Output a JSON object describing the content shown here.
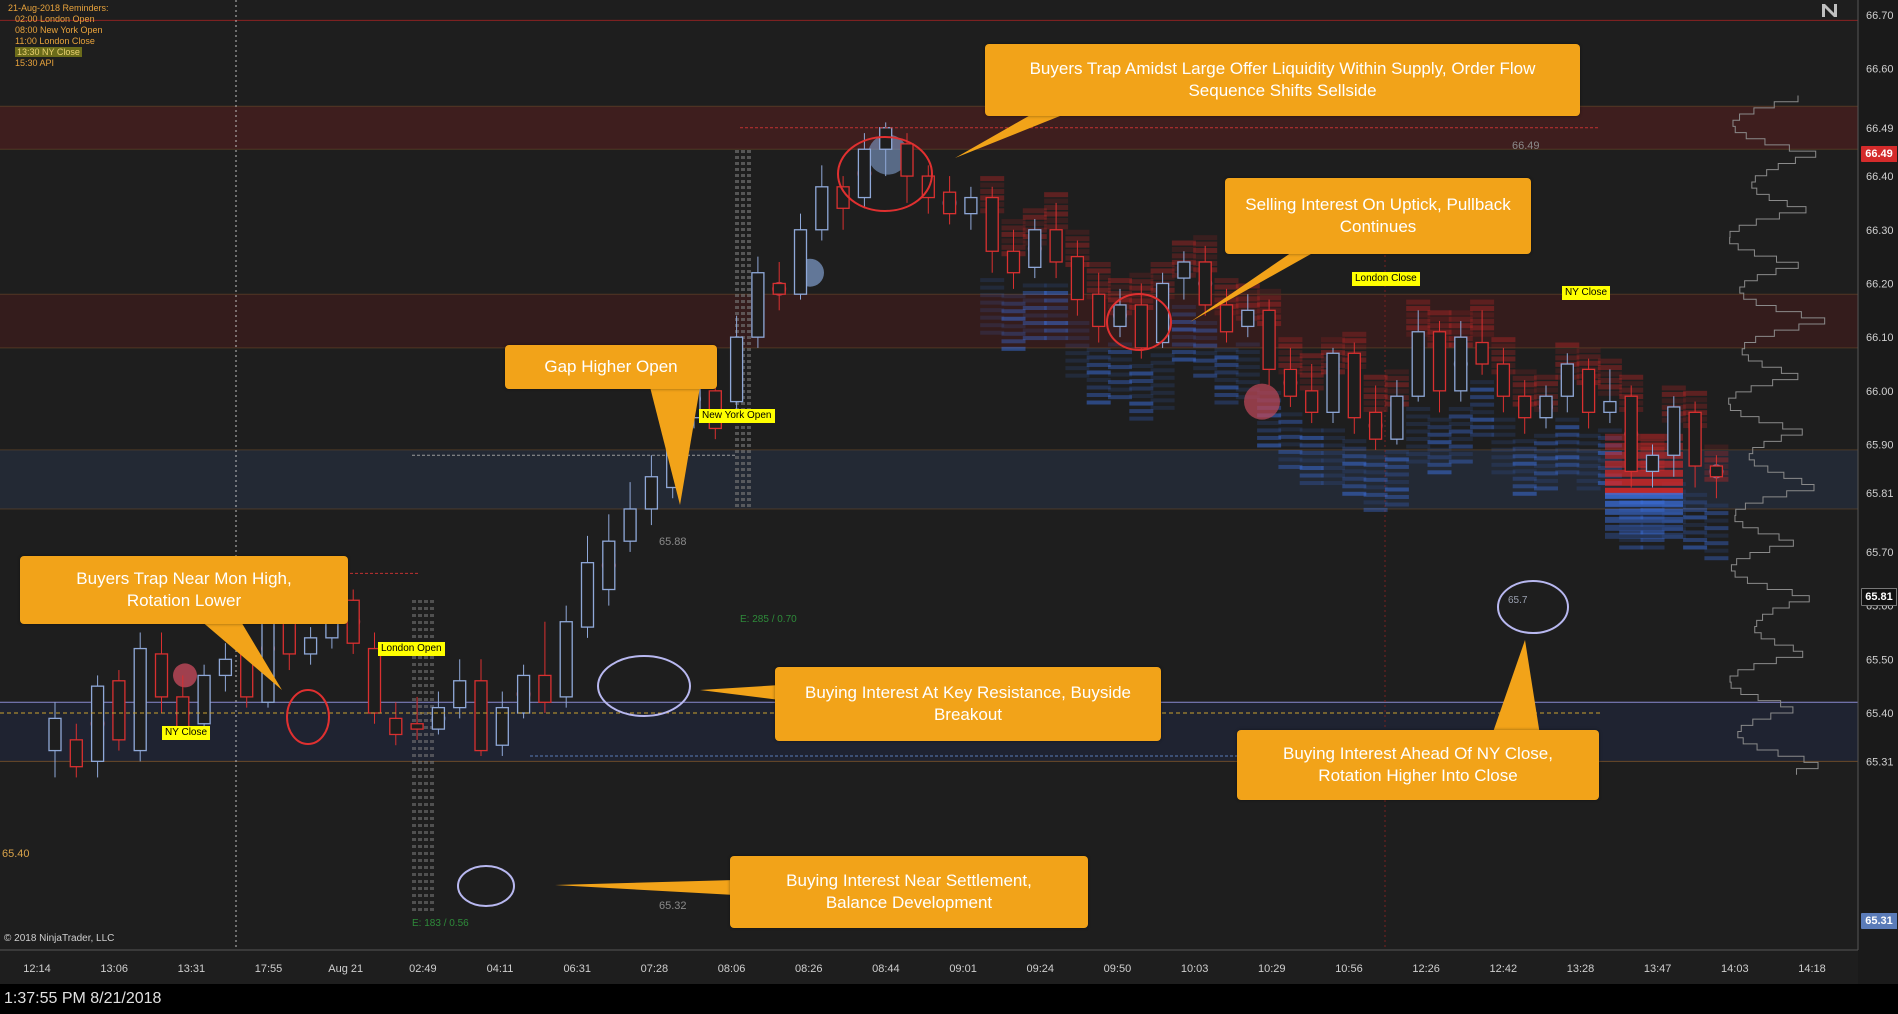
{
  "reminders": {
    "title": "21-Aug-2018 Reminders:",
    "items": [
      "02:00 London Open",
      "08:00 New York Open",
      "11:00 London Close",
      "13:30 NY Close",
      "15:30 API"
    ],
    "highlighted_index": 3
  },
  "callouts": [
    {
      "text": "Buyers Trap Amidst Large Offer Liquidity Within Supply, Order Flow Sequence Shifts Sellside"
    },
    {
      "text": "Selling Interest On Uptick, Pullback Continues"
    },
    {
      "text": "Gap Higher Open"
    },
    {
      "text": "Buyers Trap Near Mon High, Rotation Lower"
    },
    {
      "text": "Buying Interest At Key Resistance, Buyside Breakout"
    },
    {
      "text": "Buying Interest Ahead Of  NY Close, Rotation Higher Into Close"
    },
    {
      "text": "Buying Interest Near Settlement, Balance Development"
    }
  ],
  "session_tags": [
    {
      "text": "NY Close"
    },
    {
      "text": "London Open"
    },
    {
      "text": "New York Open"
    },
    {
      "text": "London Close"
    },
    {
      "text": "NY Close"
    }
  ],
  "level_labels": [
    {
      "text": "66.49"
    },
    {
      "text": "65.88"
    },
    {
      "text": "65.40"
    },
    {
      "text": "65.32"
    },
    {
      "text": "65.7"
    },
    {
      "text": "E: 285 / 0.70"
    },
    {
      "text": "E: 183 / 0.56"
    }
  ],
  "price_badges": {
    "last": "66.49",
    "current": "65.81",
    "low": "65.31"
  },
  "copyright": "© 2018 NinjaTrader, LLC",
  "status_bar": {
    "time": "1:37:55 PM 8/21/2018"
  },
  "colors": {
    "background": "#1e1e1e",
    "up_candle": "#8fa8d8",
    "down_candle": "#d93030",
    "callout": "#f2a319",
    "tag": "#ffff00",
    "bid_liquidity": "#3a6fe0",
    "ask_liquidity": "#d42828"
  },
  "chart_data": {
    "type": "candlestick",
    "instrument_price_axis": {
      "ticks": [
        "66.70",
        "66.60",
        "66.49",
        "66.40",
        "66.30",
        "66.20",
        "66.10",
        "66.00",
        "65.90",
        "65.81",
        "65.70",
        "65.60",
        "65.50",
        "65.40",
        "65.31"
      ],
      "range": [
        65.28,
        66.72
      ]
    },
    "time_axis": {
      "labels": [
        "12:14",
        "13:06",
        "13:31",
        "17:55",
        "Aug 21",
        "02:49",
        "04:11",
        "06:31",
        "07:28",
        "08:06",
        "08:26",
        "08:44",
        "09:01",
        "09:24",
        "09:50",
        "10:03",
        "10:29",
        "10:56",
        "12:26",
        "12:42",
        "13:28",
        "13:47",
        "14:03",
        "14:18"
      ]
    },
    "candles": [
      [
        65.33,
        65.39,
        65.28,
        65.42
      ],
      [
        65.35,
        65.3,
        65.28,
        65.38
      ],
      [
        65.31,
        65.45,
        65.28,
        65.47
      ],
      [
        65.46,
        65.35,
        65.33,
        65.48
      ],
      [
        65.33,
        65.52,
        65.31,
        65.55
      ],
      [
        65.51,
        65.43,
        65.4,
        65.55
      ],
      [
        65.43,
        65.37,
        65.35,
        65.47
      ],
      [
        65.38,
        65.47,
        65.36,
        65.49
      ],
      [
        65.47,
        65.5,
        65.44,
        65.53
      ],
      [
        65.51,
        65.43,
        65.41,
        65.53
      ],
      [
        65.42,
        65.62,
        65.41,
        65.65
      ],
      [
        65.62,
        65.51,
        65.48,
        65.63
      ],
      [
        65.51,
        65.54,
        65.49,
        65.56
      ],
      [
        65.54,
        65.62,
        65.52,
        65.64
      ],
      [
        65.61,
        65.53,
        65.51,
        65.63
      ],
      [
        65.52,
        65.4,
        65.38,
        65.55
      ],
      [
        65.39,
        65.36,
        65.34,
        65.42
      ],
      [
        65.38,
        65.37,
        65.35,
        65.43
      ],
      [
        65.37,
        65.41,
        65.36,
        65.44
      ],
      [
        65.41,
        65.46,
        65.39,
        65.5
      ],
      [
        65.46,
        65.33,
        65.32,
        65.5
      ],
      [
        65.34,
        65.41,
        65.32,
        65.44
      ],
      [
        65.4,
        65.47,
        65.39,
        65.49
      ],
      [
        65.47,
        65.42,
        65.4,
        65.57
      ],
      [
        65.43,
        65.57,
        65.41,
        65.6
      ],
      [
        65.56,
        65.68,
        65.54,
        65.73
      ],
      [
        65.63,
        65.72,
        65.6,
        65.77
      ],
      [
        65.72,
        65.78,
        65.7,
        65.83
      ],
      [
        65.78,
        65.84,
        65.75,
        65.88
      ],
      [
        65.82,
        65.9,
        65.8,
        65.92
      ],
      [
        65.95,
        66.02,
        65.93,
        66.05
      ],
      [
        66.0,
        65.93,
        65.91,
        66.05
      ],
      [
        65.98,
        66.1,
        65.95,
        66.14
      ],
      [
        66.1,
        66.22,
        66.08,
        66.25
      ],
      [
        66.2,
        66.18,
        66.15,
        66.24
      ],
      [
        66.18,
        66.3,
        66.17,
        66.33
      ],
      [
        66.3,
        66.38,
        66.28,
        66.42
      ],
      [
        66.38,
        66.34,
        66.3,
        66.4
      ],
      [
        66.36,
        66.45,
        66.34,
        66.48
      ],
      [
        66.45,
        66.49,
        66.4,
        66.5
      ],
      [
        66.46,
        66.4,
        66.35,
        66.48
      ],
      [
        66.4,
        66.36,
        66.33,
        66.42
      ],
      [
        66.37,
        66.33,
        66.31,
        66.4
      ],
      [
        66.33,
        66.36,
        66.3,
        66.38
      ],
      [
        66.36,
        66.26,
        66.22,
        66.38
      ],
      [
        66.26,
        66.22,
        66.19,
        66.3
      ],
      [
        66.23,
        66.3,
        66.21,
        66.32
      ],
      [
        66.3,
        66.24,
        66.21,
        66.35
      ],
      [
        66.25,
        66.17,
        66.14,
        66.28
      ],
      [
        66.18,
        66.12,
        66.09,
        66.22
      ],
      [
        66.12,
        66.16,
        66.1,
        66.19
      ],
      [
        66.16,
        66.08,
        66.06,
        66.2
      ],
      [
        66.09,
        66.2,
        66.08,
        66.22
      ],
      [
        66.21,
        66.24,
        66.17,
        66.26
      ],
      [
        66.24,
        66.16,
        66.14,
        66.27
      ],
      [
        66.16,
        66.11,
        66.09,
        66.19
      ],
      [
        66.12,
        66.15,
        66.1,
        66.18
      ],
      [
        66.15,
        66.04,
        66.01,
        66.17
      ],
      [
        66.04,
        65.99,
        65.97,
        66.08
      ],
      [
        66.0,
        65.96,
        65.94,
        66.05
      ],
      [
        65.96,
        66.07,
        65.94,
        66.08
      ],
      [
        66.07,
        65.95,
        65.92,
        66.09
      ],
      [
        65.96,
        65.91,
        65.89,
        66.01
      ],
      [
        65.91,
        65.99,
        65.9,
        66.02
      ],
      [
        65.99,
        66.11,
        65.98,
        66.15
      ],
      [
        66.11,
        66.0,
        65.96,
        66.13
      ],
      [
        66.0,
        66.1,
        65.98,
        66.13
      ],
      [
        66.09,
        66.05,
        66.03,
        66.15
      ],
      [
        66.05,
        65.99,
        65.96,
        66.08
      ],
      [
        65.99,
        65.95,
        65.92,
        66.02
      ],
      [
        65.95,
        65.99,
        65.93,
        66.01
      ],
      [
        65.99,
        66.05,
        65.96,
        66.07
      ],
      [
        66.04,
        65.96,
        65.93,
        66.06
      ],
      [
        65.96,
        65.98,
        65.94,
        66.04
      ],
      [
        65.99,
        65.85,
        65.82,
        66.01
      ],
      [
        65.85,
        65.88,
        65.82,
        65.9
      ],
      [
        65.88,
        65.97,
        65.84,
        65.99
      ],
      [
        65.96,
        65.86,
        65.82,
        65.98
      ],
      [
        65.86,
        65.84,
        65.8,
        65.88
      ]
    ],
    "horizontal_levels": [
      66.49,
      65.88,
      65.4,
      65.32
    ]
  }
}
